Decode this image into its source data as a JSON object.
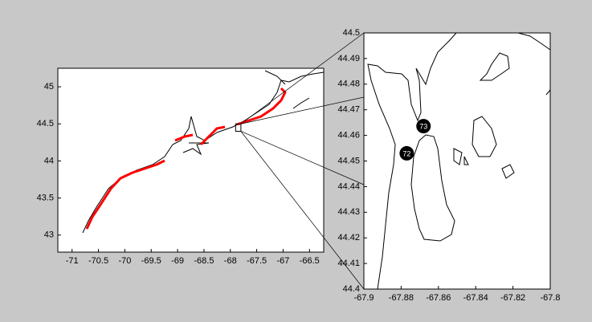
{
  "chart_data": [
    {
      "type": "map",
      "xlim": [
        -71.27,
        -66.23
      ],
      "ylim": [
        42.77,
        45.25
      ],
      "xticks": [
        -71,
        -70.5,
        -70,
        -69.5,
        -69,
        -68.5,
        -68,
        -67.5,
        -67,
        -66.5
      ],
      "yticks": [
        43,
        43.5,
        44,
        44.5,
        45
      ]
    },
    {
      "type": "map",
      "xlim": [
        -67.9,
        -67.8
      ],
      "ylim": [
        44.4,
        44.5
      ],
      "xticks": [
        -67.9,
        -67.88,
        -67.86,
        -67.84,
        -67.82,
        -67.8
      ],
      "yticks": [
        44.4,
        44.41,
        44.42,
        44.43,
        44.44,
        44.45,
        44.46,
        44.47,
        44.48,
        44.49,
        44.5
      ],
      "markers": [
        {
          "label": "73",
          "x": -67.868,
          "y": 44.4636
        },
        {
          "label": "72",
          "x": -67.877,
          "y": 44.453
        }
      ]
    }
  ]
}
